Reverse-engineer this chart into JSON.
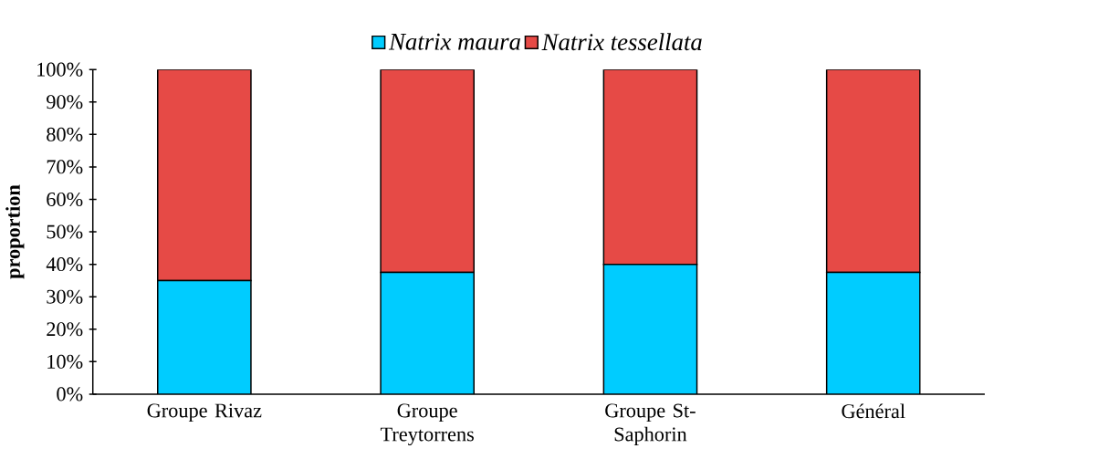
{
  "chart_data": {
    "type": "bar",
    "stacked": true,
    "ylabel": "proportion",
    "categories": [
      "Groupe Rivaz",
      "Groupe Treytorrens",
      "Groupe St-Saphorin",
      "Général"
    ],
    "series": [
      {
        "name": "Natrix maura",
        "color": "#00ccff",
        "values": [
          35,
          37.5,
          40,
          37.5
        ]
      },
      {
        "name": "Natrix tessellata",
        "color": "#e64a46",
        "values": [
          65,
          62.5,
          60,
          62.5
        ]
      }
    ],
    "ylim": [
      0,
      100
    ],
    "yticks": [
      {
        "value": 0,
        "label": "0%"
      },
      {
        "value": 10,
        "label": "10%"
      },
      {
        "value": 20,
        "label": "20%"
      },
      {
        "value": 30,
        "label": "30%"
      },
      {
        "value": 40,
        "label": "40%"
      },
      {
        "value": 50,
        "label": "50%"
      },
      {
        "value": 60,
        "label": "60%"
      },
      {
        "value": 70,
        "label": "70%"
      },
      {
        "value": 80,
        "label": "80%"
      },
      {
        "value": 90,
        "label": "90%"
      },
      {
        "value": 100,
        "label": "100%"
      }
    ],
    "grid": false,
    "legend": "top"
  }
}
